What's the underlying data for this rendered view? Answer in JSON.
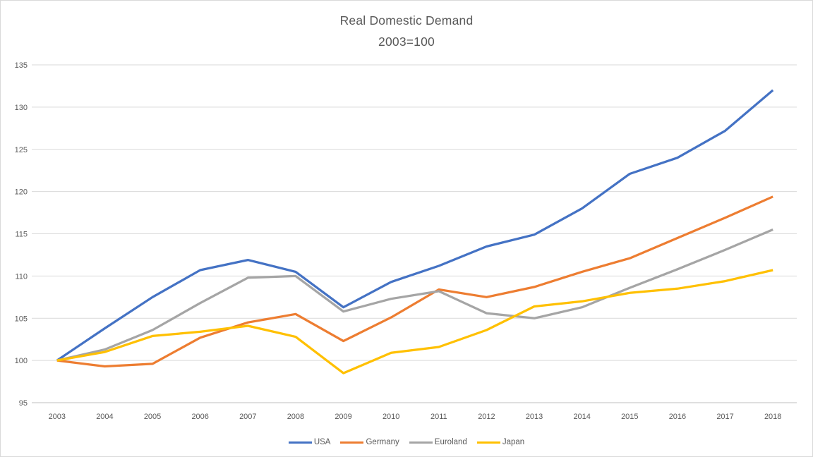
{
  "chart_data": {
    "type": "line",
    "title": "Real Domestic Demand",
    "subtitle": "2003=100",
    "x": [
      2003,
      2004,
      2005,
      2006,
      2007,
      2008,
      2009,
      2010,
      2011,
      2012,
      2013,
      2014,
      2015,
      2016,
      2017,
      2018
    ],
    "series": [
      {
        "name": "USA",
        "color": "#4472C4",
        "values": [
          100,
          103.8,
          107.5,
          110.7,
          111.9,
          110.5,
          106.3,
          109.3,
          111.2,
          113.5,
          114.9,
          118.0,
          122.1,
          124.0,
          127.2,
          132.0
        ]
      },
      {
        "name": "Germany",
        "color": "#ED7D31",
        "values": [
          100,
          99.3,
          99.6,
          102.7,
          104.5,
          105.5,
          102.3,
          105.1,
          108.4,
          107.5,
          108.7,
          110.5,
          112.1,
          114.5,
          116.9,
          119.4
        ]
      },
      {
        "name": "Euroland",
        "color": "#A5A5A5",
        "values": [
          100,
          101.3,
          103.6,
          106.8,
          109.8,
          110.0,
          105.8,
          107.3,
          108.2,
          105.6,
          105.0,
          106.3,
          108.6,
          110.8,
          113.1,
          115.5
        ]
      },
      {
        "name": "Japan",
        "color": "#FFC000",
        "values": [
          100,
          101.0,
          102.9,
          103.4,
          104.1,
          102.8,
          98.5,
          100.9,
          101.6,
          103.6,
          106.4,
          107.0,
          108.0,
          108.5,
          109.4,
          110.7
        ]
      }
    ],
    "ylim": [
      95,
      135
    ],
    "y_ticks": [
      95,
      100,
      105,
      110,
      115,
      120,
      125,
      130,
      135
    ],
    "grid": true,
    "legend_position": "bottom",
    "colors": {
      "text": "#595959",
      "gridline": "#D9D9D9",
      "axis_line": "#BFBFBF",
      "background": "#FFFFFF",
      "border": "#D9D9D9"
    }
  }
}
